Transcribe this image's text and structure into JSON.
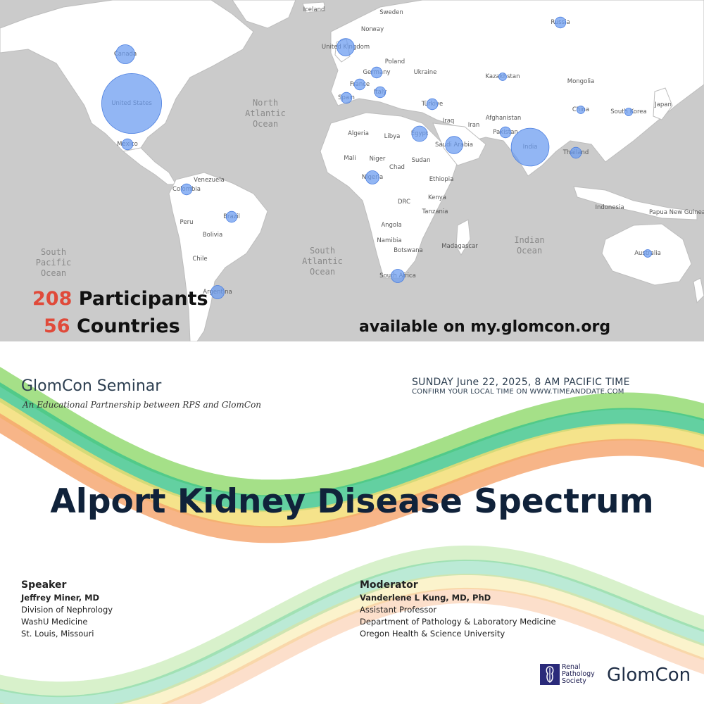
{
  "map": {
    "ocean_labels": [
      {
        "id": "north-atlantic",
        "text": "North\nAtlantic\nOcean"
      },
      {
        "id": "south-pacific",
        "text": "South\nPacific\nOcean"
      },
      {
        "id": "south-atlantic",
        "text": "South\nAtlantic\nOcean"
      },
      {
        "id": "indian",
        "text": "Indian\nOcean"
      }
    ],
    "place_labels": [
      "Iceland",
      "Sweden",
      "Russia",
      "Norway",
      "United Kingdom",
      "Canada",
      "Poland",
      "Germany",
      "Ukraine",
      "Kazakhstan",
      "France",
      "Mongolia",
      "Italy",
      "United States",
      "Spain",
      "Türkiye",
      "China",
      "South Korea",
      "Japan",
      "Iraq",
      "Afghanistan",
      "Iran",
      "Algeria",
      "Libya",
      "Egypt",
      "Pakistan",
      "Mexico",
      "Saudi Arabia",
      "India",
      "Thailand",
      "Mali",
      "Niger",
      "Sudan",
      "Chad",
      "Venezuela",
      "Nigeria",
      "Ethiopia",
      "Colombia",
      "Kenya",
      "DRC",
      "Indonesia",
      "Tanzania",
      "Papua New Guinea",
      "Brazil",
      "Peru",
      "Angola",
      "Bolivia",
      "Madagascar",
      "Namibia",
      "Botswana",
      "Chile",
      "Australia",
      "South Africa",
      "Argentina"
    ],
    "colors": {
      "land": "#ffffff",
      "water": "#cbcbcb",
      "border": "#bdbdbd",
      "bubble": "#6e9ef0",
      "bubble_stroke": "#4c7fe0",
      "label": "#555555"
    },
    "bubbles": [
      {
        "place": "United States",
        "participants": 60
      },
      {
        "place": "India",
        "participants": 24
      },
      {
        "place": "Canada",
        "participants": 6
      },
      {
        "place": "Russia",
        "participants": 2
      },
      {
        "place": "United Kingdom",
        "participants": 5
      },
      {
        "place": "Mexico",
        "participants": 2
      },
      {
        "place": "Nigeria",
        "participants": 3
      },
      {
        "place": "South Africa",
        "participants": 3
      },
      {
        "place": "Egypt",
        "participants": 4
      },
      {
        "place": "Saudi Arabia",
        "participants": 5
      },
      {
        "place": "Australia",
        "participants": 1
      },
      {
        "place": "Argentina",
        "participants": 3
      },
      {
        "place": "Brazil",
        "participants": 2
      },
      {
        "place": "Colombia",
        "participants": 2
      },
      {
        "place": "Pakistan",
        "participants": 2
      },
      {
        "place": "China",
        "participants": 1
      },
      {
        "place": "South Korea",
        "participants": 1
      },
      {
        "place": "Thailand",
        "participants": 2
      },
      {
        "place": "Kazakhstan",
        "participants": 1
      },
      {
        "place": "Spain",
        "participants": 2
      },
      {
        "place": "France",
        "participants": 2
      },
      {
        "place": "Germany",
        "participants": 2
      },
      {
        "place": "Italy",
        "participants": 2
      },
      {
        "place": "Türkiye",
        "participants": 2
      }
    ]
  },
  "stats": {
    "participants_count": "208",
    "participants_label": "Participants",
    "countries_count": "56",
    "countries_label": "Countries"
  },
  "availability": "available on my.glomcon.org",
  "seminar": {
    "series": "GlomCon Seminar",
    "subtitle": "An Educational Partnership between RPS and GlomCon",
    "date": "SUNDAY June  22, 2025, 8 AM PACIFIC TIME",
    "confirm": "CONFIRM YOUR LOCAL TIME ON WWW.TIMEANDDATE.COM",
    "title": "Alport Kidney Disease Spectrum"
  },
  "speaker": {
    "role": "Speaker",
    "name": "Jeffrey Miner, MD",
    "lines": [
      "Division of Nephrology",
      "WashU Medicine",
      "St. Louis, Missouri"
    ]
  },
  "moderator": {
    "role": "Moderator",
    "name": "Vanderlene L Kung, MD, PhD",
    "lines": [
      "Assistant Professor",
      "Department of Pathology & Laboratory Medicine",
      "Oregon Health & Science University"
    ]
  },
  "logos": {
    "rps_lines": [
      "Renal",
      "Pathology",
      "Society"
    ],
    "glomcon": "GlomCon"
  },
  "wave_colors": [
    "#8fd86a",
    "#3cc489",
    "#f3dc6e",
    "#f5a36a"
  ]
}
